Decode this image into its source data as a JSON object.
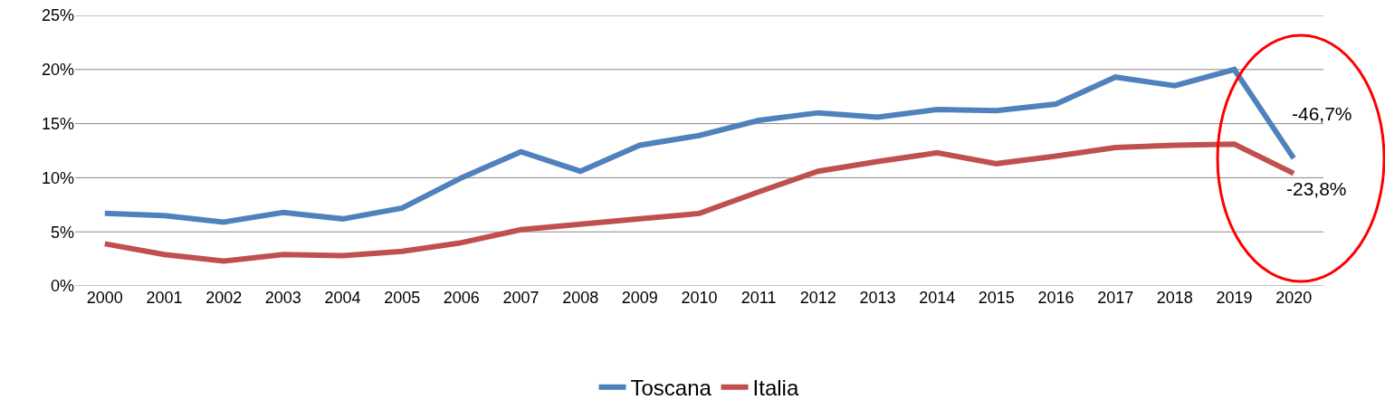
{
  "chart_data": {
    "type": "line",
    "categories": [
      "2000",
      "2001",
      "2002",
      "2003",
      "2004",
      "2005",
      "2006",
      "2007",
      "2008",
      "2009",
      "2010",
      "2011",
      "2012",
      "2013",
      "2014",
      "2015",
      "2016",
      "2017",
      "2018",
      "2019",
      "2020"
    ],
    "series": [
      {
        "name": "Toscana",
        "color": "#4f81bd",
        "values": [
          6.7,
          6.5,
          5.9,
          6.8,
          6.2,
          7.2,
          10.0,
          12.4,
          10.6,
          13.0,
          13.9,
          15.3,
          16.0,
          15.6,
          16.3,
          16.2,
          16.8,
          19.3,
          18.5,
          20.0,
          11.8
        ]
      },
      {
        "name": "Italia",
        "color": "#c0504d",
        "values": [
          3.9,
          2.9,
          2.3,
          2.9,
          2.8,
          3.2,
          4.0,
          5.2,
          5.7,
          6.2,
          6.7,
          8.7,
          10.6,
          11.5,
          12.3,
          11.3,
          12.0,
          12.8,
          13.0,
          13.1,
          10.4
        ]
      }
    ],
    "ylim": [
      0,
      25
    ],
    "yticks": [
      {
        "value": 0,
        "label": "0%"
      },
      {
        "value": 5,
        "label": "5%"
      },
      {
        "value": 10,
        "label": "10%"
      },
      {
        "value": 15,
        "label": "15%"
      },
      {
        "value": 20,
        "label": "20%"
      },
      {
        "value": 25,
        "label": "25%"
      }
    ],
    "grid": "y",
    "legend": "bottom",
    "marker": "none",
    "line_style": "solid",
    "annotations": [
      "-46,7%",
      "-23,8%"
    ]
  }
}
